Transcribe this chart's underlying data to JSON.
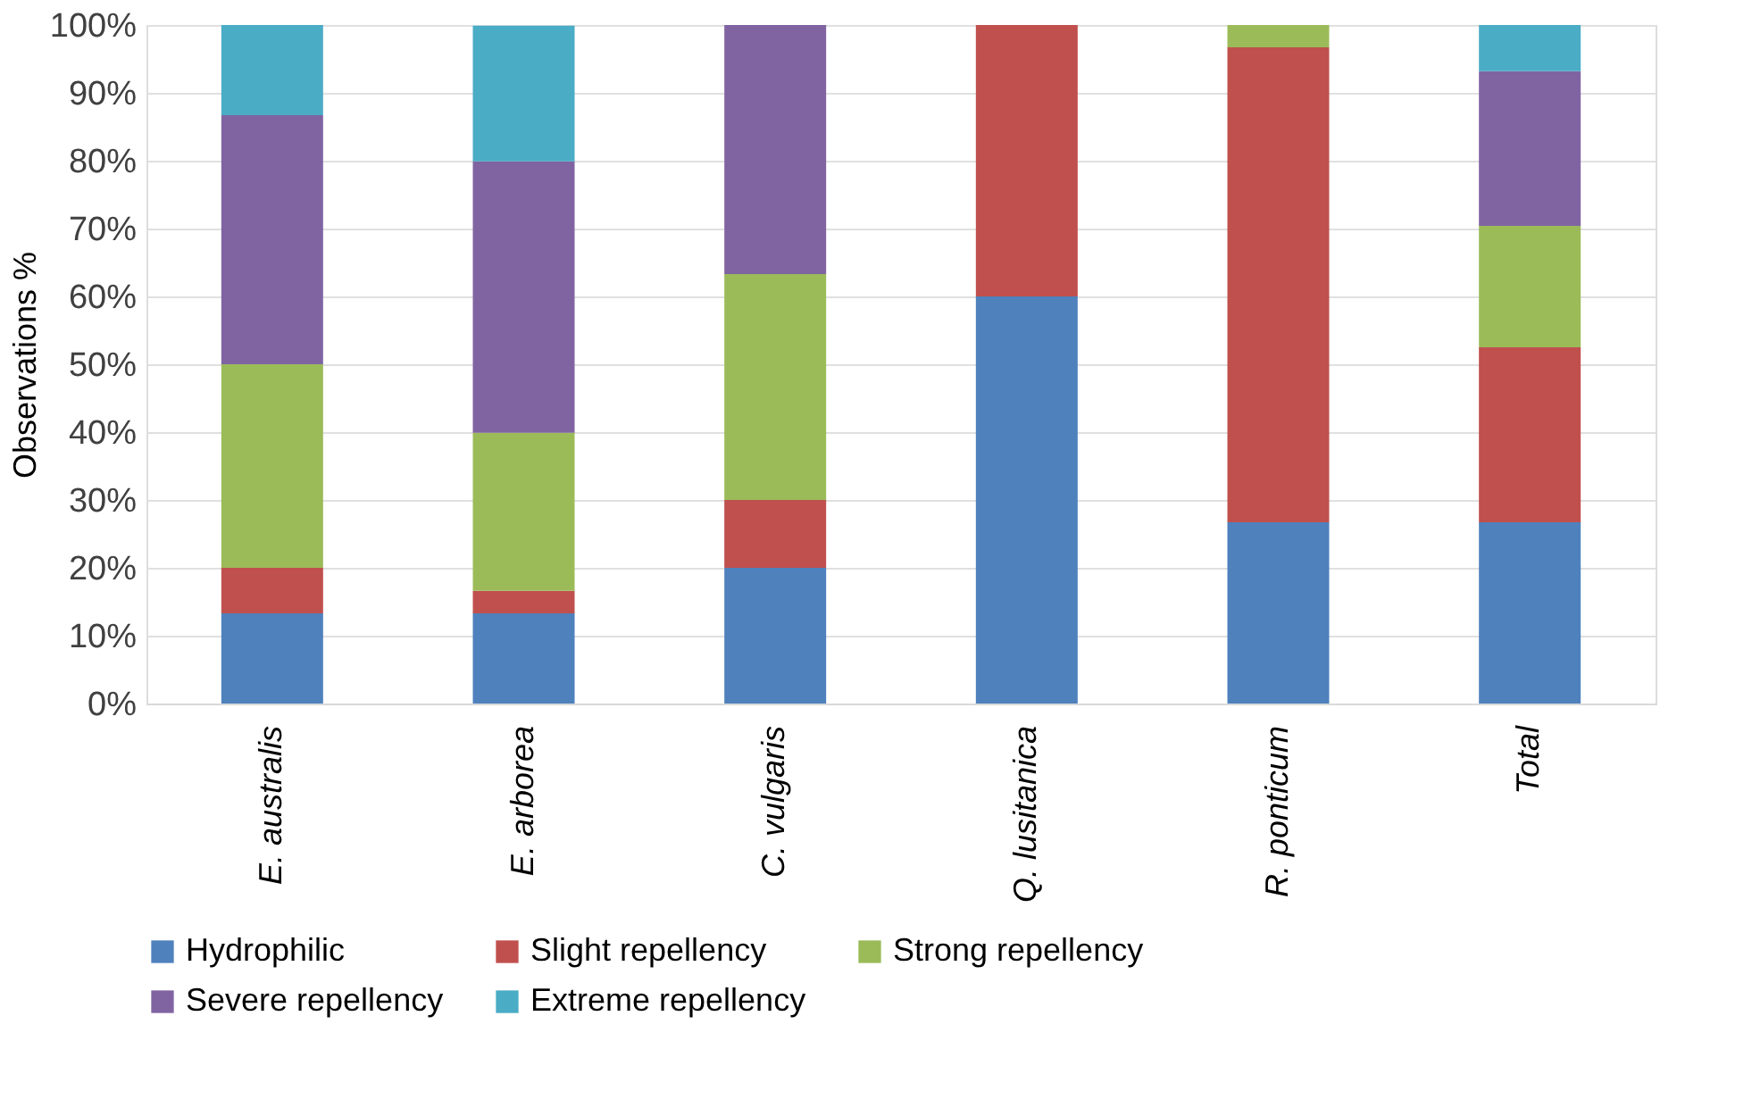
{
  "chart_data": {
    "type": "bar",
    "stacked": true,
    "ylabel": "Observations %",
    "categories": [
      "E. australis",
      "E. arborea",
      "C. vulgaris",
      "Q. lusitanica",
      "R. ponticum",
      "Total"
    ],
    "series": [
      {
        "name": "Hydrophilic",
        "color": "#4f81bd",
        "values": [
          13.3,
          13.3,
          20,
          60,
          26.7,
          26.7
        ]
      },
      {
        "name": "Slight repellency",
        "color": "#c0504d",
        "values": [
          6.7,
          3.3,
          10,
          40,
          70,
          25.8
        ]
      },
      {
        "name": "Strong repellency",
        "color": "#9bbb59",
        "values": [
          30,
          23.3,
          33.3,
          null,
          3.3,
          17.9
        ]
      },
      {
        "name": "Severe repellency",
        "color": "#8064a2",
        "values": [
          36.7,
          40,
          36.7,
          null,
          null,
          22.8
        ]
      },
      {
        "name": "Extreme repellency",
        "color": "#4bacc6",
        "values": [
          13.3,
          20,
          null,
          null,
          null,
          6.8
        ]
      }
    ],
    "ylim": [
      0,
      100
    ],
    "yticks": [
      {
        "value": 0,
        "label": "0%"
      },
      {
        "value": 10,
        "label": "10%"
      },
      {
        "value": 20,
        "label": "20%"
      },
      {
        "value": 30,
        "label": "30%"
      },
      {
        "value": 40,
        "label": "40%"
      },
      {
        "value": 50,
        "label": "50%"
      },
      {
        "value": 60,
        "label": "60%"
      },
      {
        "value": 70,
        "label": "70%"
      },
      {
        "value": 80,
        "label": "80%"
      },
      {
        "value": 90,
        "label": "90%"
      },
      {
        "value": 100,
        "label": "100%"
      }
    ],
    "grid": "y",
    "legend": "bottom"
  }
}
